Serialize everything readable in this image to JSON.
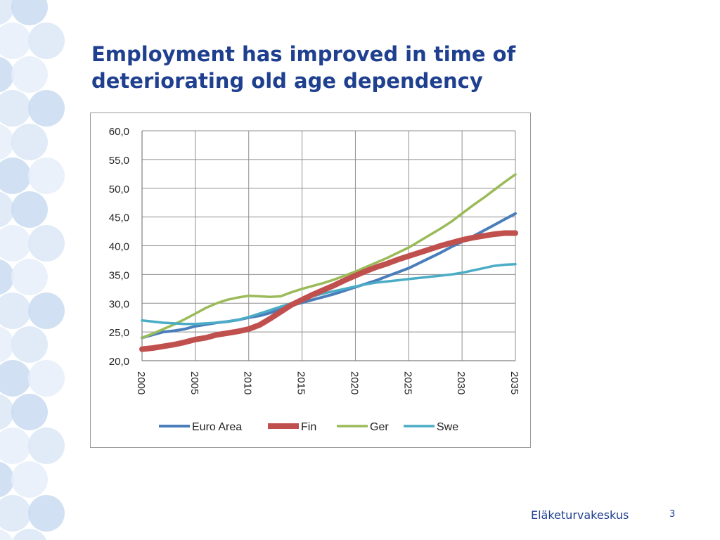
{
  "slide": {
    "title": "Employment has improved in time of deteriorating old age dependency",
    "footer_org": "Eläketurvakeskus",
    "page_number": "3",
    "accent_color": "#1f3f8f"
  },
  "chart_data": {
    "type": "line",
    "title": "",
    "xlabel": "",
    "ylabel": "",
    "ylim": [
      20,
      60
    ],
    "xlim": [
      2000,
      2035
    ],
    "yticks": [
      "20,0",
      "25,0",
      "30,0",
      "35,0",
      "40,0",
      "45,0",
      "50,0",
      "55,0",
      "60,0"
    ],
    "xticks": [
      "2000",
      "2005",
      "2010",
      "2015",
      "2020",
      "2025",
      "2030",
      "2035"
    ],
    "grid": true,
    "legend_position": "bottom",
    "x": [
      2000,
      2001,
      2002,
      2003,
      2004,
      2005,
      2006,
      2007,
      2008,
      2009,
      2010,
      2011,
      2012,
      2013,
      2014,
      2015,
      2016,
      2017,
      2018,
      2019,
      2020,
      2021,
      2022,
      2023,
      2024,
      2025,
      2026,
      2027,
      2028,
      2029,
      2030,
      2031,
      2032,
      2033,
      2034,
      2035
    ],
    "series": [
      {
        "name": "Euro Area",
        "color": "#4a7ebb",
        "values": [
          24.0,
          24.5,
          25.0,
          25.2,
          25.5,
          26.0,
          26.3,
          26.6,
          26.8,
          27.1,
          27.5,
          27.8,
          28.3,
          29.0,
          29.6,
          30.1,
          30.6,
          31.1,
          31.6,
          32.2,
          32.8,
          33.4,
          34.0,
          34.7,
          35.4,
          36.1,
          37.0,
          37.9,
          38.8,
          39.8,
          40.7,
          41.6,
          42.6,
          43.6,
          44.6,
          45.6
        ]
      },
      {
        "name": "Fin",
        "color": "#c0504d",
        "values": [
          22.0,
          22.2,
          22.5,
          22.8,
          23.2,
          23.7,
          24.0,
          24.5,
          24.8,
          25.1,
          25.5,
          26.2,
          27.3,
          28.5,
          29.7,
          30.6,
          31.5,
          32.3,
          33.1,
          34.0,
          34.8,
          35.6,
          36.3,
          36.9,
          37.6,
          38.2,
          38.8,
          39.4,
          40.0,
          40.5,
          41.0,
          41.4,
          41.7,
          42.0,
          42.2,
          42.2
        ]
      },
      {
        "name": "Ger",
        "color": "#9bbb59",
        "values": [
          24.0,
          24.7,
          25.5,
          26.3,
          27.2,
          28.2,
          29.2,
          30.0,
          30.6,
          31.0,
          31.3,
          31.2,
          31.1,
          31.2,
          31.9,
          32.5,
          33.0,
          33.5,
          34.1,
          34.8,
          35.5,
          36.3,
          37.1,
          37.9,
          38.8,
          39.7,
          40.8,
          41.9,
          43.0,
          44.2,
          45.6,
          47.0,
          48.3,
          49.7,
          51.1,
          52.4
        ]
      },
      {
        "name": "Swe",
        "color": "#4bacc6",
        "values": [
          27.0,
          26.8,
          26.6,
          26.5,
          26.4,
          26.4,
          26.5,
          26.6,
          26.8,
          27.1,
          27.6,
          28.2,
          28.8,
          29.4,
          30.0,
          30.6,
          31.2,
          31.7,
          32.1,
          32.5,
          32.9,
          33.3,
          33.6,
          33.8,
          34.0,
          34.2,
          34.4,
          34.6,
          34.8,
          35.0,
          35.3,
          35.7,
          36.1,
          36.5,
          36.7,
          36.8
        ]
      }
    ]
  }
}
